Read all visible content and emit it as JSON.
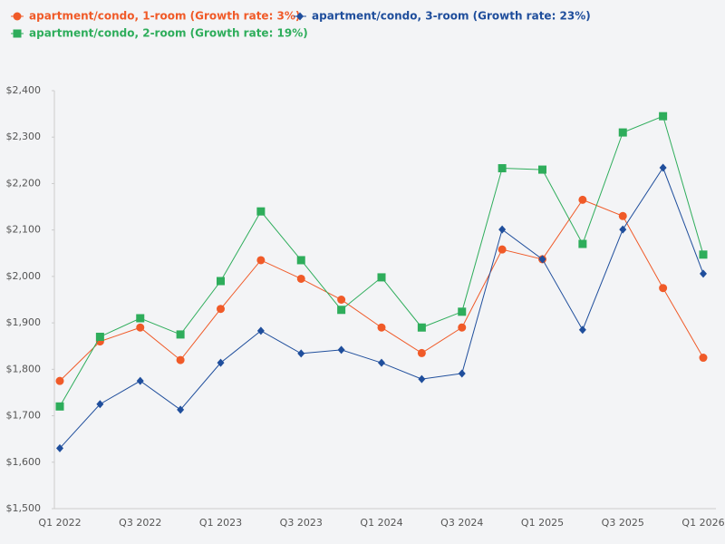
{
  "chart_data": {
    "type": "line",
    "categories": [
      "Q1 2022",
      null,
      "Q3 2022",
      null,
      "Q1 2023",
      null,
      "Q3 2023",
      null,
      "Q1 2024",
      null,
      "Q3 2024",
      null,
      "Q1 2025",
      null,
      "Q3 2025",
      null,
      "Q1 2026"
    ],
    "series": [
      {
        "name": "apartment/condo, 1-room (Growth rate: 3%)",
        "color": "#f05a28",
        "marker": "circle",
        "values": [
          1775,
          1860,
          1890,
          1820,
          1930,
          2035,
          1995,
          1950,
          1890,
          1835,
          1890,
          2058,
          2037,
          2165,
          2130,
          1975,
          1825
        ]
      },
      {
        "name": "apartment/condo, 2-room (Growth rate: 19%)",
        "color": "#2ead5b",
        "marker": "square",
        "values": [
          1720,
          1870,
          1910,
          1875,
          1990,
          2140,
          2035,
          1928,
          1998,
          1890,
          1924,
          2233,
          2230,
          2070,
          2310,
          2345,
          2047
        ]
      },
      {
        "name": "apartment/condo, 3-room (Growth rate: 23%)",
        "color": "#1f4e9c",
        "marker": "diamond",
        "values": [
          1630,
          1725,
          1775,
          1713,
          1814,
          1883,
          1834,
          1842,
          1814,
          1779,
          1791,
          2101,
          2037,
          1885,
          2101,
          2234,
          2006
        ]
      }
    ],
    "ylim": [
      1500,
      2400
    ],
    "yticks": [
      {
        "value": 1500,
        "label": "$1,500"
      },
      {
        "value": 1600,
        "label": "$1,600"
      },
      {
        "value": 1700,
        "label": "$1,700"
      },
      {
        "value": 1800,
        "label": "$1,800"
      },
      {
        "value": 1900,
        "label": "$1,900"
      },
      {
        "value": 2000,
        "label": "$2,000"
      },
      {
        "value": 2100,
        "label": "$2,100"
      },
      {
        "value": 2200,
        "label": "$2,200"
      },
      {
        "value": 2300,
        "label": "$2,300"
      },
      {
        "value": 2400,
        "label": "$2,400"
      }
    ],
    "grid": false
  }
}
